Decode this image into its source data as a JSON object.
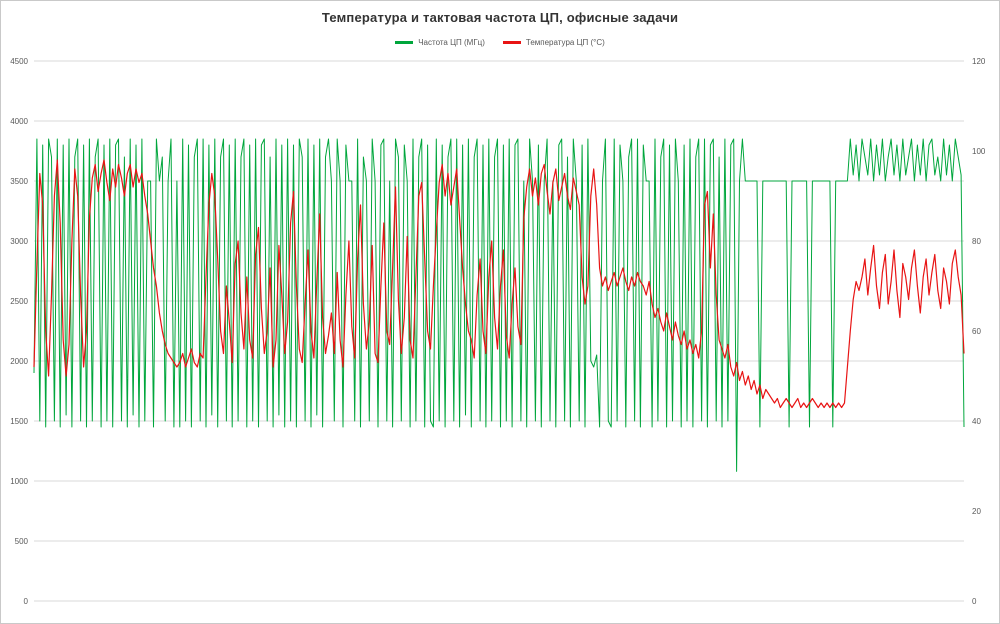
{
  "chart_data": {
    "type": "line",
    "title": "Температура и тактовая частота ЦП, офисные задачи",
    "xlabel": "",
    "grid": true,
    "legend_position": "top",
    "axes": {
      "left": {
        "range": [
          0,
          4500
        ],
        "ticks": [
          4500,
          4000,
          3500,
          3000,
          2500,
          2000,
          1500,
          1000,
          500,
          0
        ]
      },
      "right": {
        "range": [
          0,
          120
        ],
        "ticks": [
          120,
          100,
          80,
          60,
          40,
          20,
          0
        ]
      }
    },
    "colors": {
      "grid": "#d9d9d9",
      "axis_text": "#595959"
    },
    "series": [
      {
        "name": "Частота ЦП (МГц)",
        "color": "#00a63c",
        "axis": "left",
        "stroke_width": 1,
        "values": [
          1900,
          3850,
          1500,
          3800,
          1450,
          3850,
          3700,
          1500,
          3850,
          1450,
          3800,
          1550,
          3850,
          1450,
          3700,
          3850,
          1500,
          3800,
          1450,
          3850,
          1500,
          3700,
          3850,
          1450,
          3800,
          1500,
          3850,
          1450,
          3800,
          3850,
          1500,
          3700,
          1450,
          3850,
          1550,
          3800,
          1450,
          3850,
          1500,
          3500,
          3500,
          1450,
          3850,
          3500,
          3700,
          1500,
          3500,
          3850,
          1450,
          3500,
          1450,
          3850,
          1500,
          3800,
          1450,
          3700,
          3850,
          1500,
          3850,
          1450,
          3800,
          1550,
          3850,
          1450,
          3700,
          3850,
          1500,
          3800,
          1450,
          3850,
          1500,
          3700,
          3850,
          1450,
          3800,
          1500,
          3850,
          1450,
          3800,
          3850,
          1500,
          3700,
          1450,
          3850,
          1550,
          3800,
          1450,
          3850,
          1500,
          3800,
          1450,
          3850,
          3700,
          1500,
          3850,
          1450,
          3800,
          1550,
          3850,
          1450,
          3700,
          3850,
          3500,
          1500,
          3850,
          3500,
          1450,
          3800,
          3500,
          3500,
          1500,
          3850,
          1450,
          3700,
          3500,
          1500,
          3850,
          3500,
          1450,
          3800,
          3850,
          1500,
          3500,
          1450,
          3850,
          3700,
          1500,
          3800,
          3500,
          1450,
          3850,
          1500,
          3700,
          3850,
          1450,
          3800,
          1500,
          1450,
          3850,
          1500,
          3800,
          1450,
          3700,
          3850,
          1500,
          3850,
          1450,
          3800,
          1550,
          3850,
          1450,
          3700,
          3850,
          1500,
          3800,
          1450,
          3850,
          1500,
          3700,
          3850,
          1450,
          3800,
          1500,
          3850,
          1450,
          3800,
          3850,
          1500,
          3500,
          1450,
          3850,
          3500,
          1500,
          3800,
          1450,
          3500,
          3850,
          1500,
          3500,
          1450,
          3800,
          3850,
          1500,
          3700,
          1450,
          3850,
          3500,
          1500,
          3800,
          1450,
          3850,
          2000,
          1950,
          2050,
          1450,
          3500,
          3850,
          1500,
          1450,
          3850,
          1500,
          3800,
          3500,
          1450,
          3700,
          3850,
          1500,
          3850,
          1450,
          3800,
          3500,
          3500,
          1450,
          3850,
          1500,
          3700,
          3850,
          1450,
          3800,
          1500,
          3850,
          3500,
          1450,
          3800,
          1500,
          3850,
          1450,
          3700,
          3850,
          1500,
          3850,
          1450,
          3800,
          3850,
          1500,
          3700,
          1450,
          3850,
          1500,
          3800,
          3850,
          1080,
          3500,
          3850,
          3500,
          3500,
          3500,
          3500,
          3500,
          1450,
          3500,
          3500,
          3500,
          3500,
          3500,
          3500,
          3500,
          3500,
          3500,
          1450,
          3500,
          3500,
          3500,
          3500,
          3500,
          3500,
          1450,
          3500,
          3500,
          3500,
          3500,
          3500,
          3500,
          3500,
          1450,
          3500,
          3500,
          3500,
          3500,
          3500,
          3850,
          3550,
          3800,
          3500,
          3850,
          3700,
          3550,
          3850,
          3500,
          3800,
          3550,
          3850,
          3500,
          3700,
          3850,
          3550,
          3800,
          3500,
          3850,
          3550,
          3700,
          3850,
          3500,
          3800,
          3550,
          3850,
          3500,
          3800,
          3850,
          3550,
          3700,
          3500,
          3850,
          3550,
          3800,
          3500,
          3850,
          3700,
          3550,
          1450
        ]
      },
      {
        "name": "Температура ЦП (°C)",
        "color": "#e81414",
        "axis": "right",
        "stroke_width": 1.2,
        "values": [
          52,
          75,
          95,
          88,
          60,
          50,
          68,
          90,
          98,
          84,
          58,
          50,
          57,
          80,
          96,
          90,
          68,
          52,
          60,
          85,
          94,
          97,
          91,
          95,
          98,
          93,
          89,
          96,
          92,
          97,
          94,
          90,
          95,
          97,
          92,
          96,
          93,
          95,
          90,
          86,
          80,
          74,
          70,
          64,
          60,
          57,
          55,
          54,
          53,
          52,
          53,
          55,
          52,
          54,
          56,
          53,
          52,
          55,
          54,
          72,
          88,
          95,
          90,
          76,
          60,
          55,
          70,
          62,
          53,
          75,
          80,
          64,
          56,
          72,
          58,
          54,
          77,
          83,
          65,
          55,
          60,
          74,
          52,
          58,
          79,
          68,
          55,
          62,
          84,
          91,
          70,
          56,
          53,
          66,
          78,
          60,
          54,
          71,
          86,
          63,
          55,
          59,
          64,
          55,
          73,
          58,
          52,
          68,
          80,
          61,
          54,
          76,
          88,
          66,
          56,
          62,
          79,
          55,
          53,
          70,
          84,
          60,
          57,
          74,
          92,
          67,
          55,
          63,
          81,
          58,
          54,
          72,
          90,
          93,
          76,
          60,
          56,
          70,
          82,
          93,
          97,
          90,
          95,
          88,
          92,
          96,
          85,
          74,
          66,
          60,
          58,
          54,
          68,
          76,
          60,
          55,
          72,
          80,
          63,
          56,
          70,
          78,
          59,
          54,
          66,
          74,
          61,
          57,
          85,
          92,
          96,
          90,
          94,
          88,
          95,
          97,
          91,
          86,
          93,
          96,
          89,
          92,
          95,
          90,
          87,
          94,
          91,
          88,
          72,
          66,
          70,
          90,
          96,
          88,
          74,
          70,
          72,
          69,
          71,
          73,
          70,
          72,
          74,
          71,
          69,
          72,
          70,
          73,
          71,
          70,
          68,
          71,
          66,
          63,
          65,
          62,
          60,
          64,
          61,
          58,
          62,
          59,
          57,
          60,
          56,
          58,
          55,
          57,
          54,
          60,
          88,
          91,
          74,
          86,
          68,
          58,
          56,
          54,
          57,
          52,
          50,
          53,
          49,
          51,
          48,
          50,
          47,
          49,
          46,
          48,
          45,
          47,
          46,
          45,
          44,
          45,
          43,
          44,
          45,
          44,
          43,
          44,
          45,
          43,
          44,
          43,
          44,
          45,
          44,
          43,
          44,
          43,
          44,
          43,
          44,
          43,
          44,
          43,
          44,
          52,
          60,
          67,
          71,
          69,
          72,
          76,
          68,
          74,
          79,
          70,
          65,
          73,
          77,
          66,
          71,
          78,
          69,
          63,
          75,
          72,
          67,
          74,
          78,
          70,
          64,
          72,
          76,
          68,
          73,
          77,
          69,
          65,
          74,
          71,
          66,
          75,
          78,
          72,
          68,
          55
        ]
      }
    ]
  }
}
